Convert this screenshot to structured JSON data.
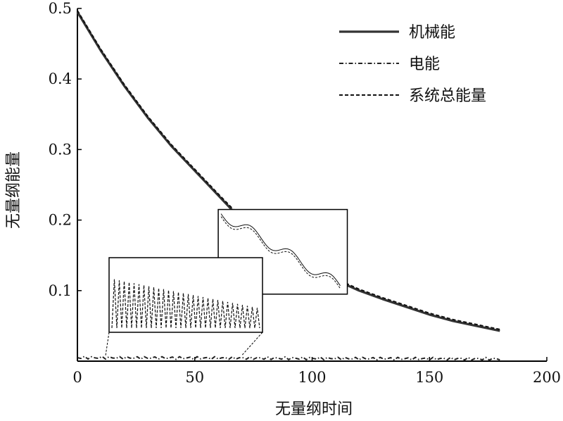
{
  "chart_data": {
    "type": "line",
    "xlabel": "无量纲时间",
    "ylabel": "无量纲能量",
    "xlim": [
      0,
      200
    ],
    "ylim": [
      0,
      0.5
    ],
    "xticks": [
      "0",
      "50",
      "100",
      "150",
      "200"
    ],
    "yticks": [
      "0.1",
      "0.2",
      "0.3",
      "0.4",
      "0.5"
    ],
    "legend_position": "top-right",
    "grid": false,
    "series": [
      {
        "name": "机械能",
        "style": "solid",
        "x": [
          0,
          10,
          20,
          30,
          40,
          50,
          60,
          70,
          80,
          90,
          100,
          110,
          120,
          130,
          140,
          150,
          160,
          170,
          180
        ],
        "y": [
          0.495,
          0.44,
          0.39,
          0.345,
          0.305,
          0.27,
          0.235,
          0.2,
          0.175,
          0.155,
          0.135,
          0.115,
          0.1,
          0.088,
          0.077,
          0.066,
          0.057,
          0.05,
          0.043
        ]
      },
      {
        "name": "电能",
        "style": "dashdot",
        "x": [
          0,
          180
        ],
        "y": [
          0.005,
          0.003
        ]
      },
      {
        "name": "系统总能量",
        "style": "dashed",
        "x": [
          0,
          10,
          20,
          30,
          40,
          50,
          60,
          70,
          80,
          90,
          100,
          110,
          120,
          130,
          140,
          150,
          160,
          170,
          180
        ],
        "y": [
          0.497,
          0.442,
          0.392,
          0.347,
          0.307,
          0.272,
          0.237,
          0.203,
          0.178,
          0.157,
          0.137,
          0.117,
          0.102,
          0.09,
          0.079,
          0.068,
          0.059,
          0.052,
          0.045
        ]
      }
    ],
    "annotations": [
      {
        "type": "zoom-box",
        "x_range": [
          60,
          115
        ],
        "y_range": [
          0.095,
          0.215
        ]
      },
      {
        "type": "zoom-box",
        "x_range": [
          10,
          75
        ],
        "y_range": [
          0.0,
          0.012
        ]
      }
    ]
  }
}
